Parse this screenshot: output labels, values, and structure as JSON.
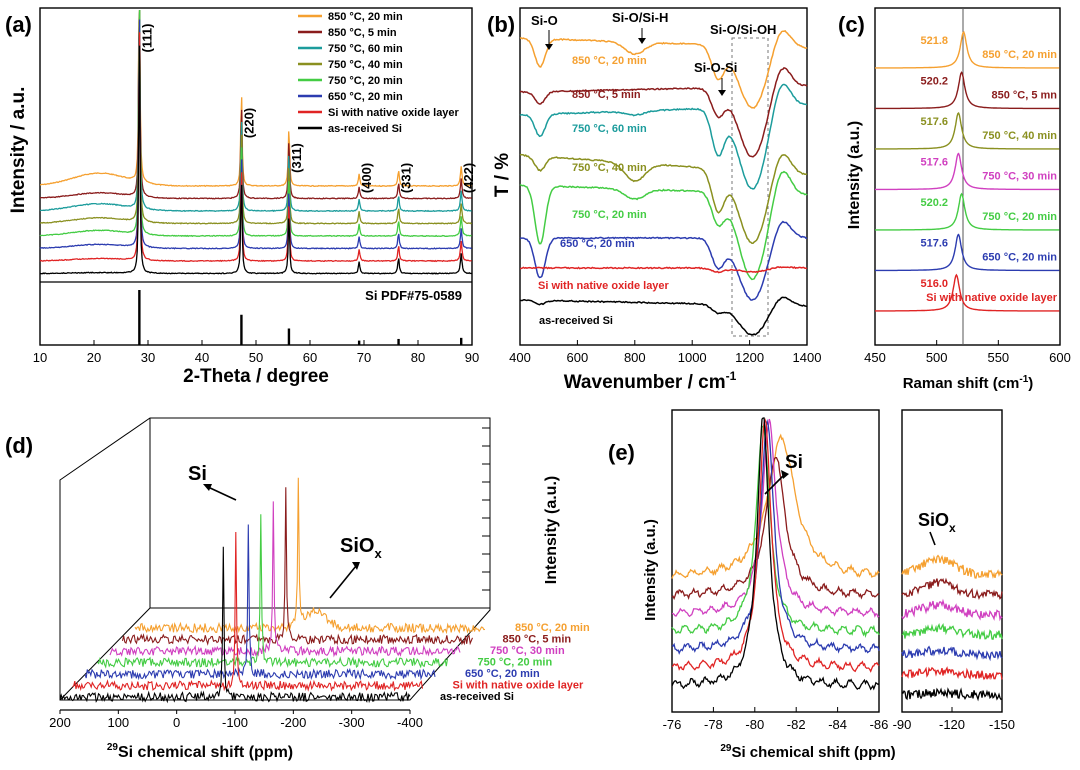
{
  "colors": {
    "orange": "#f5a030",
    "maroon": "#8a1c1c",
    "teal": "#1c9c9c",
    "olive": "#8a9020",
    "green": "#44cc44",
    "blue": "#2c3cb0",
    "magenta": "#d040c0",
    "red": "#e02424",
    "black": "#000000"
  },
  "chart_data": [
    {
      "id": "a",
      "panel_label": "(a)",
      "type": "line",
      "title": "",
      "xlabel": "2-Theta / degree",
      "ylabel": "Intensity / a.u.",
      "xlim": [
        10,
        90
      ],
      "xticks": [
        "10",
        "20",
        "30",
        "40",
        "50",
        "60",
        "70",
        "80",
        "90"
      ],
      "legend": {
        "position": "top-right",
        "entries": [
          {
            "label": "850 °C, 20 min",
            "color": "orange"
          },
          {
            "label": "850 °C, 5 min",
            "color": "maroon"
          },
          {
            "label": "750 °C, 60 min",
            "color": "teal"
          },
          {
            "label": "750 °C, 40 min",
            "color": "olive"
          },
          {
            "label": "750 °C, 20 min",
            "color": "green"
          },
          {
            "label": "650 °C, 20 min",
            "color": "blue"
          },
          {
            "label": "Si with native oxide layer",
            "color": "red"
          },
          {
            "label": "as-received Si",
            "color": "black"
          }
        ]
      },
      "peaks": [
        {
          "label": "(111)",
          "x": 28.4
        },
        {
          "label": "(220)",
          "x": 47.3
        },
        {
          "label": "(311)",
          "x": 56.1
        },
        {
          "label": "(400)",
          "x": 69.1
        },
        {
          "label": "(331)",
          "x": 76.4
        },
        {
          "label": "(422)",
          "x": 88.0
        }
      ],
      "reference": {
        "label": "Si PDF#75-0589",
        "x": [
          28.4,
          47.3,
          56.1,
          69.1,
          76.4,
          88.0
        ],
        "relative_intensity": [
          100,
          55,
          30,
          8,
          11,
          13
        ]
      }
    },
    {
      "id": "b",
      "panel_label": "(b)",
      "type": "line",
      "xlabel": "Wavenumber / cm",
      "xlabel_sup": "-1",
      "ylabel": "T / %",
      "xlim": [
        400,
        1400
      ],
      "xticks": [
        "400",
        "600",
        "800",
        "1000",
        "1200",
        "1400"
      ],
      "annotations": [
        "Si-O",
        "Si-O/Si-H",
        "Si-O/Si-OH",
        "Si-O-Si"
      ],
      "series": [
        {
          "name": "850 °C, 20 min",
          "color": "orange"
        },
        {
          "name": "850 °C, 5 min",
          "color": "maroon"
        },
        {
          "name": "750 °C, 60 min",
          "color": "teal"
        },
        {
          "name": "750 °C, 40 min",
          "color": "olive"
        },
        {
          "name": "750 °C, 20 min",
          "color": "green"
        },
        {
          "name": "650 °C, 20 min",
          "color": "blue"
        },
        {
          "name": "Si with native oxide layer",
          "color": "red"
        },
        {
          "name": "as-received Si",
          "color": "black"
        }
      ]
    },
    {
      "id": "c",
      "panel_label": "(c)",
      "type": "line",
      "xlabel": "Raman shift (cm",
      "xlabel_sup": "-1",
      "xlabel_end": ")",
      "ylabel": "Intensity (a.u.)",
      "xlim": [
        450,
        600
      ],
      "xticks": [
        "450",
        "500",
        "550",
        "600"
      ],
      "series": [
        {
          "name": "850 °C, 20 min",
          "peak": 521.8,
          "peak_label": "521.8",
          "color": "orange"
        },
        {
          "name": "850 °C, 5 mn",
          "peak": 520.2,
          "peak_label": "520.2",
          "color": "maroon"
        },
        {
          "name": "750 °C, 40 min",
          "peak": 517.6,
          "peak_label": "517.6",
          "color": "olive"
        },
        {
          "name": "750 °C, 30 min",
          "peak": 517.6,
          "peak_label": "517.6",
          "color": "magenta"
        },
        {
          "name": "750 °C, 20 min",
          "peak": 520.2,
          "peak_label": "520.2",
          "color": "green"
        },
        {
          "name": "650 °C, 20 min",
          "peak": 517.6,
          "peak_label": "517.6",
          "color": "blue"
        },
        {
          "name": "Si with native oxide layer",
          "peak": 516.0,
          "peak_label": "516.0",
          "color": "red"
        }
      ]
    },
    {
      "id": "d",
      "panel_label": "(d)",
      "type": "line",
      "xlabel": "Si chemical shift (ppm)",
      "xlabel_sup": "29",
      "ylabel": "Intensity (a.u.)",
      "xlim": [
        200,
        -400
      ],
      "xticks": [
        "200",
        "100",
        "0",
        "-100",
        "-200",
        "-300",
        "-400"
      ],
      "annotations": [
        "Si",
        "SiO",
        "x"
      ],
      "series": [
        {
          "name": "850 °C, 20 min",
          "color": "orange"
        },
        {
          "name": "850 °C, 5 min",
          "color": "maroon"
        },
        {
          "name": "750 °C, 30 min",
          "color": "magenta"
        },
        {
          "name": "750 °C, 20 min",
          "color": "green"
        },
        {
          "name": "650 °C, 20 min",
          "color": "blue"
        },
        {
          "name": "Si with native oxide layer",
          "color": "red"
        },
        {
          "name": "as-received Si",
          "color": "black"
        }
      ]
    },
    {
      "id": "e",
      "panel_label": "(e)",
      "type": "line",
      "xlabel": "Si chemical shift (ppm)",
      "xlabel_sup": "29",
      "ylabel": "Intensity (a.u.)",
      "xlim_left": [
        -76,
        -86
      ],
      "xlim_right": [
        -90,
        -150
      ],
      "xticks_left": [
        "-76",
        "-78",
        "-80",
        "-82",
        "-84",
        "-86"
      ],
      "xticks_right": [
        "-90",
        "-120",
        "-150"
      ],
      "annotations": [
        "Si",
        "SiO",
        "x"
      ],
      "series": [
        {
          "name": "850 °C, 20 min",
          "peak": -81.3,
          "color": "orange"
        },
        {
          "name": "850 °C, 5 min",
          "peak": -81.0,
          "color": "maroon"
        },
        {
          "name": "750 °C, 30 min",
          "peak": -80.7,
          "color": "magenta"
        },
        {
          "name": "750 °C, 20 min",
          "peak": -80.4,
          "color": "green"
        },
        {
          "name": "650 °C, 20 min",
          "peak": -80.6,
          "color": "blue"
        },
        {
          "name": "Si with native oxide layer",
          "peak": -80.5,
          "color": "red"
        },
        {
          "name": "as-received Si",
          "peak": -80.4,
          "color": "black"
        }
      ]
    }
  ]
}
